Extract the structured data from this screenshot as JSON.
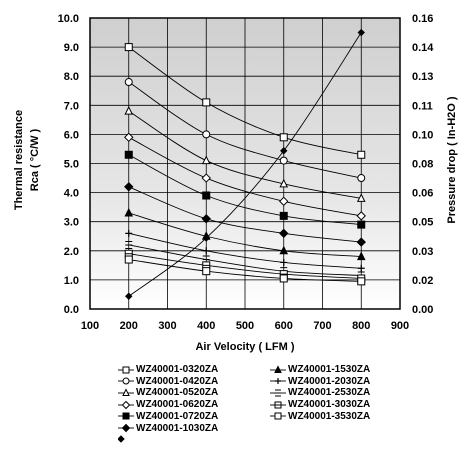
{
  "chart_data": {
    "type": "line",
    "xlabel": "Air Velocity ( LFM )",
    "ylabel_lines": [
      "Thermal resistance",
      "Rca ( °C/W )"
    ],
    "y2label": "Pressure drop ( In-H2O )",
    "xlim": [
      100,
      900
    ],
    "ylim": [
      0,
      10
    ],
    "y2lim": [
      0,
      0.16
    ],
    "x_ticks": [
      "100",
      "200",
      "300",
      "400",
      "500",
      "600",
      "700",
      "800",
      "900"
    ],
    "y_ticks": [
      "0.0",
      "1.0",
      "2.0",
      "3.0",
      "4.0",
      "5.0",
      "6.0",
      "7.0",
      "8.0",
      "9.0",
      "10.0"
    ],
    "y2_ticks": [
      "0.00",
      "0.02",
      "0.03",
      "0.05",
      "0.06",
      "0.08",
      "0.10",
      "0.11",
      "0.13",
      "0.14",
      "0.16"
    ],
    "x": [
      200,
      400,
      600,
      800
    ],
    "series": [
      {
        "name": "WZ40001-0320ZA",
        "marker": "square-open",
        "values": [
          9.0,
          7.1,
          5.9,
          5.3
        ]
      },
      {
        "name": "WZ40001-0420ZA",
        "marker": "circle-open",
        "values": [
          7.8,
          6.0,
          5.1,
          4.5
        ]
      },
      {
        "name": "WZ40001-0520ZA",
        "marker": "triangle-open",
        "values": [
          6.8,
          5.1,
          4.3,
          3.8
        ]
      },
      {
        "name": "WZ40001-0620ZA",
        "marker": "diamond-open",
        "values": [
          5.9,
          4.5,
          3.7,
          3.2
        ]
      },
      {
        "name": "WZ40001-0720ZA",
        "marker": "square-filled",
        "values": [
          5.3,
          3.9,
          3.2,
          2.9
        ]
      },
      {
        "name": "WZ40001-1030ZA",
        "marker": "diamond-filled",
        "values": [
          4.2,
          3.1,
          2.6,
          2.3
        ]
      },
      {
        "name": "WZ40001-1530ZA",
        "marker": "triangle-filled",
        "values": [
          3.3,
          2.5,
          2.0,
          1.8
        ]
      },
      {
        "name": "WZ40001-2030ZA",
        "marker": "plus",
        "values": [
          2.6,
          2.0,
          1.6,
          1.4
        ]
      },
      {
        "name": "WZ40001-2530ZA",
        "marker": "dash-box",
        "values": [
          2.2,
          1.7,
          1.3,
          1.15
        ]
      },
      {
        "name": "WZ40001-3030ZA",
        "marker": "square-line",
        "values": [
          1.9,
          1.5,
          1.2,
          1.05
        ]
      },
      {
        "name": "WZ40001-3530ZA",
        "marker": "square-open",
        "values": [
          1.7,
          1.3,
          1.05,
          0.95
        ]
      }
    ],
    "pressure_drop": {
      "marker": "diamond-small",
      "values": [
        0.007,
        0.039,
        0.087,
        0.152
      ]
    },
    "grid": true
  }
}
